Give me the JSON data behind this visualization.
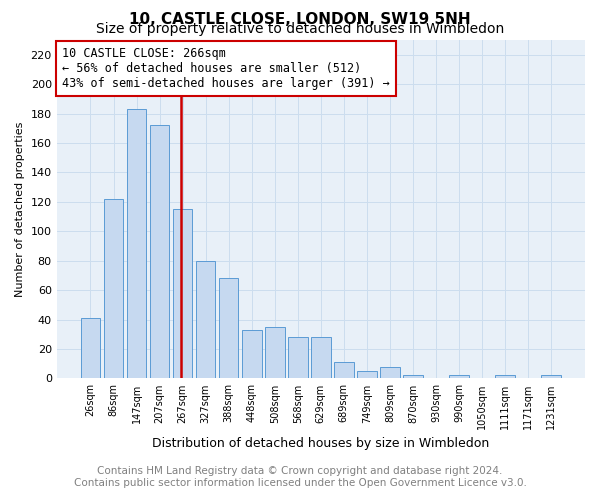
{
  "title": "10, CASTLE CLOSE, LONDON, SW19 5NH",
  "subtitle": "Size of property relative to detached houses in Wimbledon",
  "xlabel": "Distribution of detached houses by size in Wimbledon",
  "ylabel": "Number of detached properties",
  "categories": [
    "26sqm",
    "86sqm",
    "147sqm",
    "207sqm",
    "267sqm",
    "327sqm",
    "388sqm",
    "448sqm",
    "508sqm",
    "568sqm",
    "629sqm",
    "689sqm",
    "749sqm",
    "809sqm",
    "870sqm",
    "930sqm",
    "990sqm",
    "1050sqm",
    "1111sqm",
    "1171sqm",
    "1231sqm"
  ],
  "values": [
    41,
    122,
    183,
    172,
    115,
    80,
    68,
    33,
    35,
    28,
    28,
    11,
    5,
    8,
    2,
    0,
    2,
    0,
    2,
    0,
    2
  ],
  "bar_color": "#c6d9f0",
  "bar_edge_color": "#5b9bd5",
  "vline_color": "#cc0000",
  "vline_x": 3.93,
  "annotation_title": "10 CASTLE CLOSE: 266sqm",
  "annotation_line1": "← 56% of detached houses are smaller (512)",
  "annotation_line2": "43% of semi-detached houses are larger (391) →",
  "annotation_box_color": "#cc0000",
  "ylim": [
    0,
    230
  ],
  "yticks": [
    0,
    20,
    40,
    60,
    80,
    100,
    120,
    140,
    160,
    180,
    200,
    220
  ],
  "grid_color": "#ccddee",
  "background_color": "#e8f0f8",
  "footer_line1": "Contains HM Land Registry data © Crown copyright and database right 2024.",
  "footer_line2": "Contains public sector information licensed under the Open Government Licence v3.0.",
  "title_fontsize": 11,
  "subtitle_fontsize": 10,
  "annotation_fontsize": 8.5,
  "footer_fontsize": 7.5,
  "ylabel_fontsize": 8,
  "xlabel_fontsize": 9
}
